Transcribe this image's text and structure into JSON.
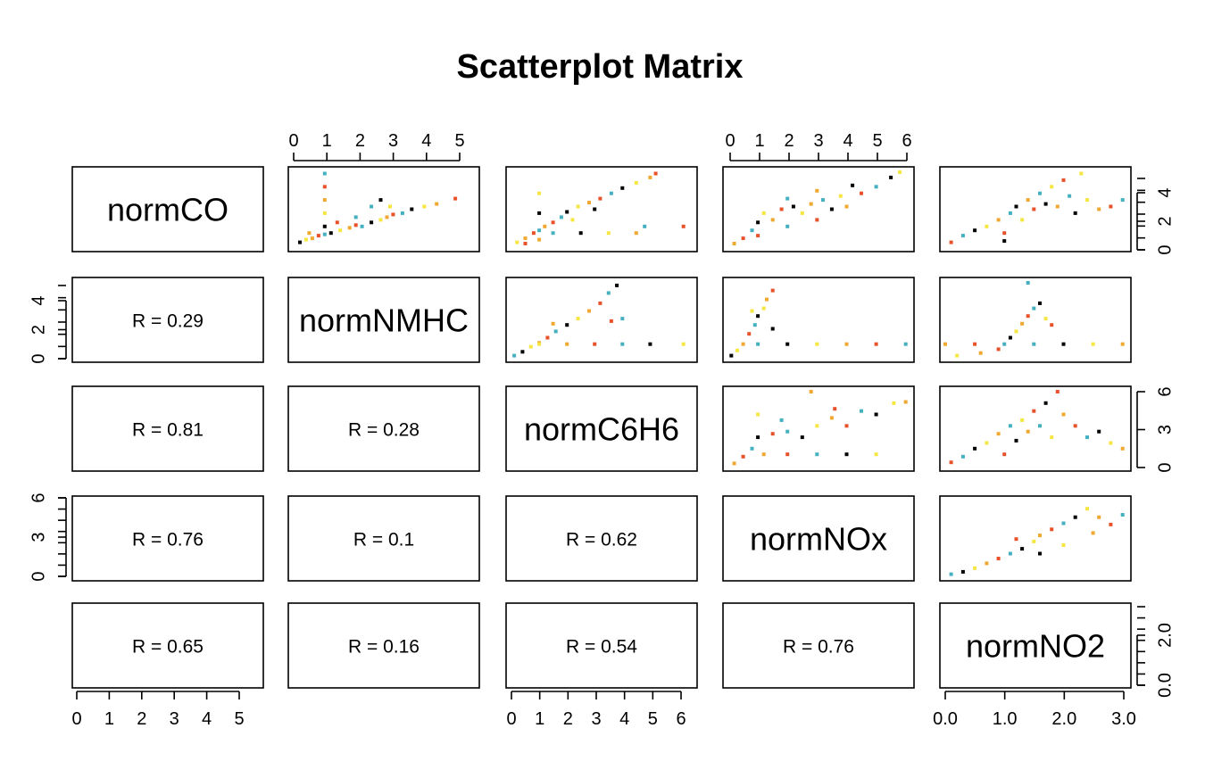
{
  "chart_data": {
    "type": "scatter",
    "title": "Scatterplot Matrix",
    "variables": [
      "normCO",
      "normNMHC",
      "normC6H6",
      "normNOx",
      "normNO2"
    ],
    "ranges": [
      [
        0,
        5.6
      ],
      [
        0,
        5.8
      ],
      [
        0,
        6.5
      ],
      [
        0,
        6.1
      ],
      [
        0,
        3.05
      ]
    ],
    "axis_ticks": {
      "normCO": [
        "0",
        "1",
        "2",
        "3",
        "4",
        "5"
      ],
      "normNMHC": [
        "0",
        "2",
        "4"
      ],
      "normC6H6": [
        "0",
        "1",
        "2",
        "3",
        "4",
        "5",
        "6"
      ],
      "normNOx": [
        "0",
        "3",
        "6"
      ],
      "normNO2": [
        "0.0",
        "1.0",
        "2.0",
        "3.0"
      ],
      "normNO2_right": [
        "0.0",
        "2.0"
      ],
      "normC6H6_right": [
        "0",
        "3",
        "6"
      ],
      "normCO_right": [
        "0",
        "2",
        "4"
      ],
      "normNOx_top": [
        "0",
        "1",
        "2",
        "3",
        "4",
        "5",
        "6"
      ]
    },
    "correlations": [
      {
        "row": "normNMHC",
        "col": "normCO",
        "label": "R = 0.29"
      },
      {
        "row": "normC6H6",
        "col": "normCO",
        "label": "R = 0.81"
      },
      {
        "row": "normC6H6",
        "col": "normNMHC",
        "label": "R = 0.28"
      },
      {
        "row": "normNOx",
        "col": "normCO",
        "label": "R = 0.76"
      },
      {
        "row": "normNOx",
        "col": "normNMHC",
        "label": "R = 0.1"
      },
      {
        "row": "normNOx",
        "col": "normC6H6",
        "label": "R = 0.62"
      },
      {
        "row": "normNO2",
        "col": "normCO",
        "label": "R = 0.65"
      },
      {
        "row": "normNO2",
        "col": "normNMHC",
        "label": "R = 0.16"
      },
      {
        "row": "normNO2",
        "col": "normC6H6",
        "label": "R = 0.54"
      },
      {
        "row": "normNO2",
        "col": "normNOx",
        "label": "R = 0.76"
      }
    ],
    "point_colors": [
      "#000000",
      "#f5e642",
      "#f0a830",
      "#e8522a",
      "#45b0bf"
    ],
    "upper_panels": [
      {
        "row": "normCO",
        "col": "normNMHC",
        "points": [
          [
            0.2,
            0.3
          ],
          [
            0.4,
            0.5
          ],
          [
            0.6,
            0.6
          ],
          [
            0.8,
            0.8
          ],
          [
            1.0,
            0.9
          ],
          [
            1.0,
            1.5
          ],
          [
            1.0,
            2.5
          ],
          [
            1.0,
            3.5
          ],
          [
            1.0,
            4.5
          ],
          [
            1.0,
            5.5
          ],
          [
            1.2,
            1.0
          ],
          [
            1.5,
            1.2
          ],
          [
            1.8,
            1.4
          ],
          [
            2.0,
            1.6
          ],
          [
            2.2,
            1.5
          ],
          [
            2.5,
            1.8
          ],
          [
            2.8,
            2.0
          ],
          [
            3.0,
            2.2
          ],
          [
            3.2,
            2.4
          ],
          [
            3.5,
            2.5
          ],
          [
            3.8,
            2.8
          ],
          [
            4.2,
            3.0
          ],
          [
            4.6,
            3.2
          ],
          [
            5.2,
            3.6
          ],
          [
            2.5,
            3.0
          ],
          [
            2.8,
            3.5
          ],
          [
            3.1,
            3.0
          ],
          [
            0.5,
            1.0
          ],
          [
            1.4,
            1.8
          ],
          [
            2.0,
            2.2
          ]
        ]
      },
      {
        "row": "normCO",
        "col": "normC6H6",
        "points": [
          [
            0.2,
            0.3
          ],
          [
            0.5,
            0.6
          ],
          [
            0.8,
            1.0
          ],
          [
            1.0,
            1.2
          ],
          [
            1.0,
            2.5
          ],
          [
            1.0,
            4.0
          ],
          [
            1.2,
            1.5
          ],
          [
            1.5,
            1.8
          ],
          [
            1.8,
            2.2
          ],
          [
            2.0,
            2.6
          ],
          [
            2.4,
            3.0
          ],
          [
            2.8,
            3.3
          ],
          [
            3.2,
            3.6
          ],
          [
            3.6,
            4.0
          ],
          [
            4.0,
            4.4
          ],
          [
            4.5,
            4.8
          ],
          [
            5.0,
            5.2
          ],
          [
            5.2,
            5.5
          ],
          [
            1.5,
            1.0
          ],
          [
            2.5,
            1.0
          ],
          [
            3.5,
            1.0
          ],
          [
            4.5,
            1.0
          ],
          [
            6.2,
            1.5
          ],
          [
            4.8,
            1.5
          ],
          [
            3.0,
            2.8
          ],
          [
            2.2,
            2.0
          ],
          [
            1.0,
            0.5
          ],
          [
            0.5,
            0.2
          ]
        ]
      },
      {
        "row": "normCO",
        "col": "normNOx",
        "points": [
          [
            0.2,
            0.2
          ],
          [
            0.5,
            0.6
          ],
          [
            0.8,
            1.2
          ],
          [
            1.0,
            1.8
          ],
          [
            1.2,
            2.5
          ],
          [
            1.5,
            2.0
          ],
          [
            1.8,
            2.8
          ],
          [
            2.0,
            1.5
          ],
          [
            2.2,
            3.0
          ],
          [
            2.5,
            2.5
          ],
          [
            2.8,
            3.2
          ],
          [
            3.0,
            2.0
          ],
          [
            3.2,
            3.5
          ],
          [
            3.5,
            2.8
          ],
          [
            3.8,
            3.8
          ],
          [
            4.0,
            3.0
          ],
          [
            4.5,
            4.0
          ],
          [
            5.0,
            4.5
          ],
          [
            5.5,
            5.2
          ],
          [
            5.8,
            5.6
          ],
          [
            3.0,
            4.2
          ],
          [
            1.0,
            0.8
          ],
          [
            2.0,
            3.6
          ],
          [
            4.2,
            4.6
          ]
        ]
      },
      {
        "row": "normCO",
        "col": "normNO2",
        "points": [
          [
            0.1,
            0.3
          ],
          [
            0.3,
            0.8
          ],
          [
            0.5,
            1.2
          ],
          [
            0.7,
            1.5
          ],
          [
            0.9,
            2.0
          ],
          [
            1.0,
            1.0
          ],
          [
            1.1,
            2.5
          ],
          [
            1.2,
            3.0
          ],
          [
            1.3,
            2.0
          ],
          [
            1.4,
            3.5
          ],
          [
            1.5,
            2.8
          ],
          [
            1.6,
            4.0
          ],
          [
            1.7,
            3.2
          ],
          [
            1.8,
            4.5
          ],
          [
            1.9,
            3.0
          ],
          [
            2.0,
            5.0
          ],
          [
            2.1,
            3.8
          ],
          [
            2.2,
            2.5
          ],
          [
            2.4,
            3.5
          ],
          [
            2.6,
            2.8
          ],
          [
            2.8,
            3.0
          ],
          [
            3.0,
            3.5
          ],
          [
            1.0,
            0.4
          ],
          [
            2.3,
            5.5
          ]
        ]
      },
      {
        "row": "normNMHC",
        "col": "normC6H6",
        "points": [
          [
            0.1,
            0.1
          ],
          [
            0.4,
            0.4
          ],
          [
            0.7,
            0.8
          ],
          [
            1.0,
            1.1
          ],
          [
            1.3,
            1.5
          ],
          [
            1.6,
            2.0
          ],
          [
            2.0,
            2.5
          ],
          [
            2.4,
            3.0
          ],
          [
            2.8,
            3.6
          ],
          [
            3.2,
            4.2
          ],
          [
            3.5,
            5.0
          ],
          [
            3.8,
            5.6
          ],
          [
            1.0,
            1.0
          ],
          [
            2.0,
            1.0
          ],
          [
            3.0,
            1.0
          ],
          [
            4.0,
            1.0
          ],
          [
            5.0,
            1.0
          ],
          [
            6.2,
            1.0
          ],
          [
            1.5,
            2.6
          ],
          [
            3.6,
            2.8
          ],
          [
            4.0,
            3.0
          ]
        ]
      },
      {
        "row": "normNMHC",
        "col": "normNOx",
        "points": [
          [
            0.1,
            0.1
          ],
          [
            0.3,
            0.5
          ],
          [
            0.5,
            1.0
          ],
          [
            0.7,
            1.8
          ],
          [
            0.9,
            2.5
          ],
          [
            1.0,
            3.2
          ],
          [
            1.2,
            3.8
          ],
          [
            1.3,
            4.5
          ],
          [
            1.5,
            5.2
          ],
          [
            1.0,
            1.0
          ],
          [
            2.0,
            1.0
          ],
          [
            3.0,
            1.0
          ],
          [
            4.0,
            1.0
          ],
          [
            5.0,
            1.0
          ],
          [
            6.0,
            1.0
          ],
          [
            1.5,
            2.2
          ],
          [
            0.8,
            3.6
          ]
        ]
      },
      {
        "row": "normNMHC",
        "col": "normNO2",
        "points": [
          [
            0.2,
            0.1
          ],
          [
            0.6,
            0.3
          ],
          [
            0.9,
            0.6
          ],
          [
            1.0,
            1.0
          ],
          [
            1.1,
            1.5
          ],
          [
            1.2,
            2.0
          ],
          [
            1.3,
            2.6
          ],
          [
            1.4,
            3.2
          ],
          [
            1.5,
            3.8
          ],
          [
            1.6,
            4.2
          ],
          [
            1.7,
            3.0
          ],
          [
            0.0,
            1.0
          ],
          [
            0.5,
            1.0
          ],
          [
            1.5,
            1.0
          ],
          [
            2.0,
            1.0
          ],
          [
            2.5,
            1.0
          ],
          [
            3.0,
            1.0
          ],
          [
            1.8,
            2.5
          ],
          [
            1.4,
            5.8
          ]
        ]
      },
      {
        "row": "normC6H6",
        "col": "normNOx",
        "points": [
          [
            0.2,
            0.2
          ],
          [
            0.5,
            0.8
          ],
          [
            0.8,
            1.5
          ],
          [
            1.0,
            2.5
          ],
          [
            1.0,
            4.5
          ],
          [
            1.2,
            1.0
          ],
          [
            1.5,
            2.8
          ],
          [
            2.0,
            3.0
          ],
          [
            2.5,
            2.5
          ],
          [
            3.0,
            3.5
          ],
          [
            3.5,
            4.2
          ],
          [
            4.0,
            3.5
          ],
          [
            4.5,
            4.8
          ],
          [
            5.0,
            4.5
          ],
          [
            5.6,
            5.5
          ],
          [
            6.0,
            5.6
          ],
          [
            2.0,
            1.0
          ],
          [
            3.0,
            1.0
          ],
          [
            4.0,
            1.0
          ],
          [
            5.0,
            1.0
          ],
          [
            2.8,
            6.5
          ],
          [
            3.6,
            5.0
          ],
          [
            1.8,
            4.0
          ]
        ]
      },
      {
        "row": "normC6H6",
        "col": "normNO2",
        "points": [
          [
            0.1,
            0.3
          ],
          [
            0.3,
            0.8
          ],
          [
            0.5,
            1.5
          ],
          [
            0.7,
            2.0
          ],
          [
            0.9,
            2.8
          ],
          [
            1.0,
            1.0
          ],
          [
            1.1,
            3.5
          ],
          [
            1.2,
            2.2
          ],
          [
            1.3,
            4.0
          ],
          [
            1.4,
            3.0
          ],
          [
            1.5,
            4.8
          ],
          [
            1.6,
            3.5
          ],
          [
            1.7,
            5.5
          ],
          [
            1.8,
            2.5
          ],
          [
            2.0,
            4.5
          ],
          [
            2.2,
            3.5
          ],
          [
            2.4,
            2.5
          ],
          [
            2.6,
            3.0
          ],
          [
            2.8,
            2.0
          ],
          [
            3.0,
            1.5
          ],
          [
            1.9,
            6.5
          ]
        ]
      },
      {
        "row": "normNOx",
        "col": "normNO2",
        "points": [
          [
            0.1,
            0.1
          ],
          [
            0.3,
            0.3
          ],
          [
            0.5,
            0.6
          ],
          [
            0.7,
            1.0
          ],
          [
            0.9,
            1.4
          ],
          [
            1.1,
            1.8
          ],
          [
            1.3,
            2.2
          ],
          [
            1.5,
            2.8
          ],
          [
            1.6,
            3.3
          ],
          [
            1.8,
            3.8
          ],
          [
            2.0,
            4.3
          ],
          [
            2.2,
            4.8
          ],
          [
            2.4,
            5.5
          ],
          [
            2.6,
            4.8
          ],
          [
            2.8,
            4.2
          ],
          [
            3.0,
            5.0
          ],
          [
            1.6,
            1.8
          ],
          [
            2.0,
            2.5
          ],
          [
            2.5,
            3.5
          ],
          [
            1.2,
            3.0
          ]
        ]
      }
    ]
  }
}
